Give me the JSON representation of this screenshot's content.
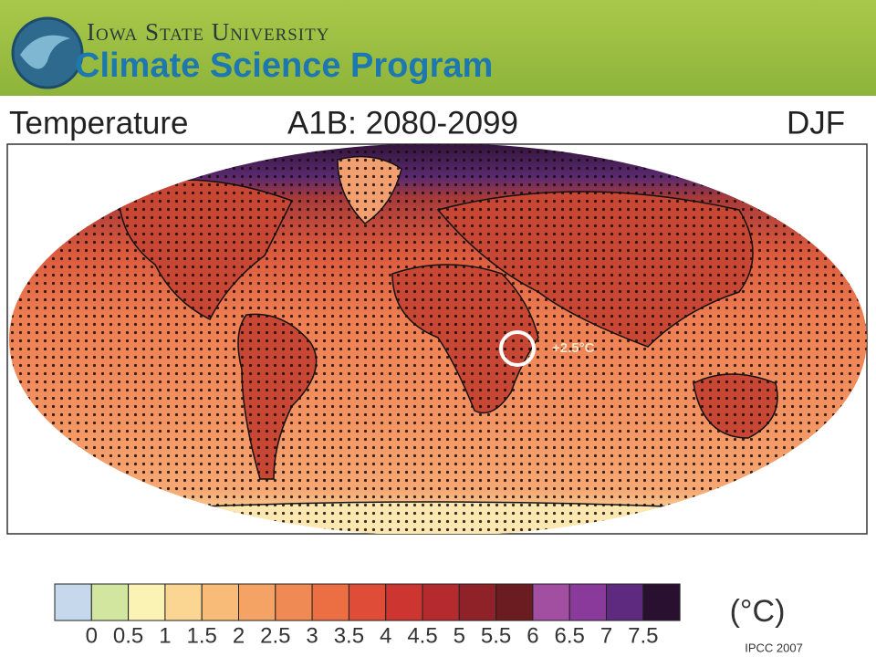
{
  "header": {
    "university": "Iowa State University",
    "program": "Climate Science Program"
  },
  "map": {
    "title": "Temperature",
    "scenario": "A1B: 2080-2099",
    "season": "DJF",
    "annotation": "+2.5°C",
    "colorbar": {
      "ticks": [
        0,
        0.5,
        1,
        1.5,
        2,
        2.5,
        3,
        3.5,
        4,
        4.5,
        5,
        5.5,
        6,
        6.5,
        7,
        7.5
      ],
      "colors": [
        "#c6d9ec",
        "#d3e6a0",
        "#fbf3b4",
        "#fbd592",
        "#f9bc78",
        "#f5a265",
        "#f08a54",
        "#ec6f44",
        "#df4c38",
        "#cc3530",
        "#b42a2e",
        "#8e2228",
        "#6a1c20",
        "#a24fa2",
        "#8a3a9a",
        "#5e2a80",
        "#2a1030"
      ],
      "unit": "(°C)"
    }
  },
  "source": "IPCC 2007"
}
